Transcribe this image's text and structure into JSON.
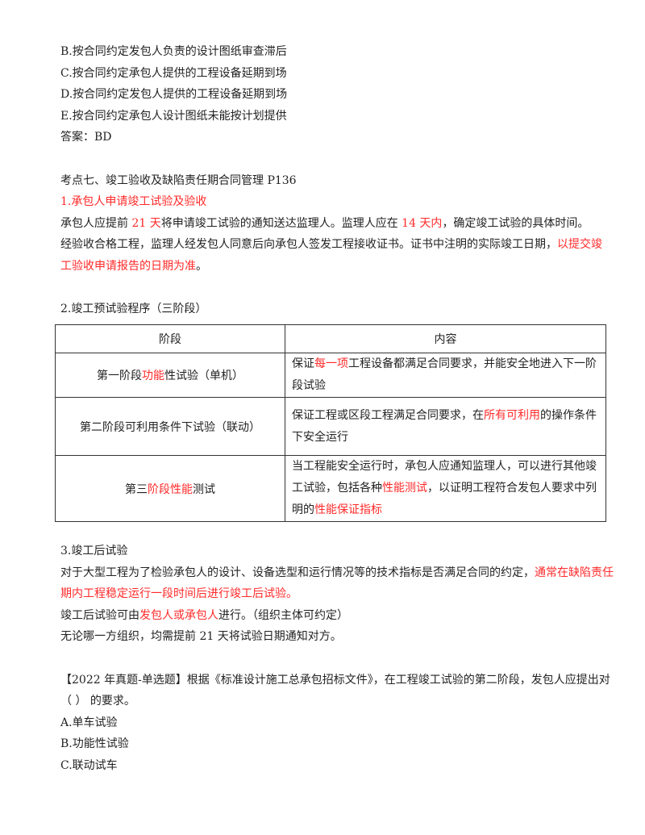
{
  "options_prev": [
    "B.按合同约定发包人负责的设计图纸审查滞后",
    "C.按合同约定承包人提供的工程设备延期到场",
    "D.按合同约定发包人提供的工程设备延期到场",
    "E.按合同约定承包人设计图纸未能按计划提供"
  ],
  "answer": "答案：BD",
  "section_title": "考点七、竣工验收及缺陷责任期合同管理 P136",
  "sub1_title": "1.承包人申请竣工试验及验收",
  "sub1_p1": [
    {
      "t": "承包人应提前 "
    },
    {
      "t": "21 天",
      "red": true
    },
    {
      "t": "将申请竣工试验的通知送达监理人。监理人应在 "
    },
    {
      "t": "14 天内",
      "red": true
    },
    {
      "t": "，确定竣工试验的具体时间。"
    }
  ],
  "sub1_p2": [
    {
      "t": "经验收合格工程，监理人经发包人同意后向承包人签发工程接收证书。证书中注明的实际竣工日期，"
    },
    {
      "t": "以提交竣工验收申请报告的日期为准",
      "red": true
    },
    {
      "t": "。"
    }
  ],
  "sub2_title": "2.竣工预试验程序（三阶段）",
  "table": {
    "headers": [
      "阶段",
      "内容"
    ],
    "rows": [
      {
        "stage": [
          {
            "t": "第一阶段"
          },
          {
            "t": "功能",
            "red": true
          },
          {
            "t": "性试验（单机）"
          }
        ],
        "content": [
          {
            "t": "保证"
          },
          {
            "t": "每一项",
            "red": true
          },
          {
            "t": "工程设备都满足合同要求，并能安全地进入下一阶段试验"
          }
        ]
      },
      {
        "stage": [
          {
            "t": "第二阶段可利用条件下试验（联动）"
          }
        ],
        "content": [
          {
            "t": "保证工程或区段工程满足合同要求，在"
          },
          {
            "t": "所有可利用",
            "red": true
          },
          {
            "t": "的操作条件下安全运行"
          }
        ]
      },
      {
        "stage": [
          {
            "t": "第三"
          },
          {
            "t": "阶段性能",
            "red": true
          },
          {
            "t": "测试"
          }
        ],
        "content": [
          {
            "t": "当工程能安全运行时，承包人应通知监理人，可以进行其他竣工试验，包括各种"
          },
          {
            "t": "性能测试",
            "red": true
          },
          {
            "t": "，以证明工程符合发包人要求中列明的"
          },
          {
            "t": "性能保证指标",
            "red": true
          }
        ]
      }
    ]
  },
  "sub3_title": "3.竣工后试验",
  "sub3_p1": [
    {
      "t": "对于大型工程为了检验承包人的设计、设备选型和运行情况等的技术指标是否满足合同的约定，"
    },
    {
      "t": "通常在缺陷责任期内工程稳定运行一段时间后进行竣工后试验。",
      "red": true
    }
  ],
  "sub3_p2": [
    {
      "t": "竣工后试验可由"
    },
    {
      "t": "发包人或承包人",
      "red": true
    },
    {
      "t": "进行。（组织主体可约定）"
    }
  ],
  "sub3_p3": "无论哪一方组织，均需提前 21 天将试验日期通知对方。",
  "question": "【2022 年真题-单选题】根据《标准设计施工总承包招标文件》，在工程竣工试验的第二阶段，发包人应提出对（   ）  的要求。",
  "question_options": [
    "A.单车试验",
    "B.功能性试验",
    "C.联动试车"
  ],
  "colors": {
    "highlight": "#ff2a2a",
    "text": "#222222"
  }
}
